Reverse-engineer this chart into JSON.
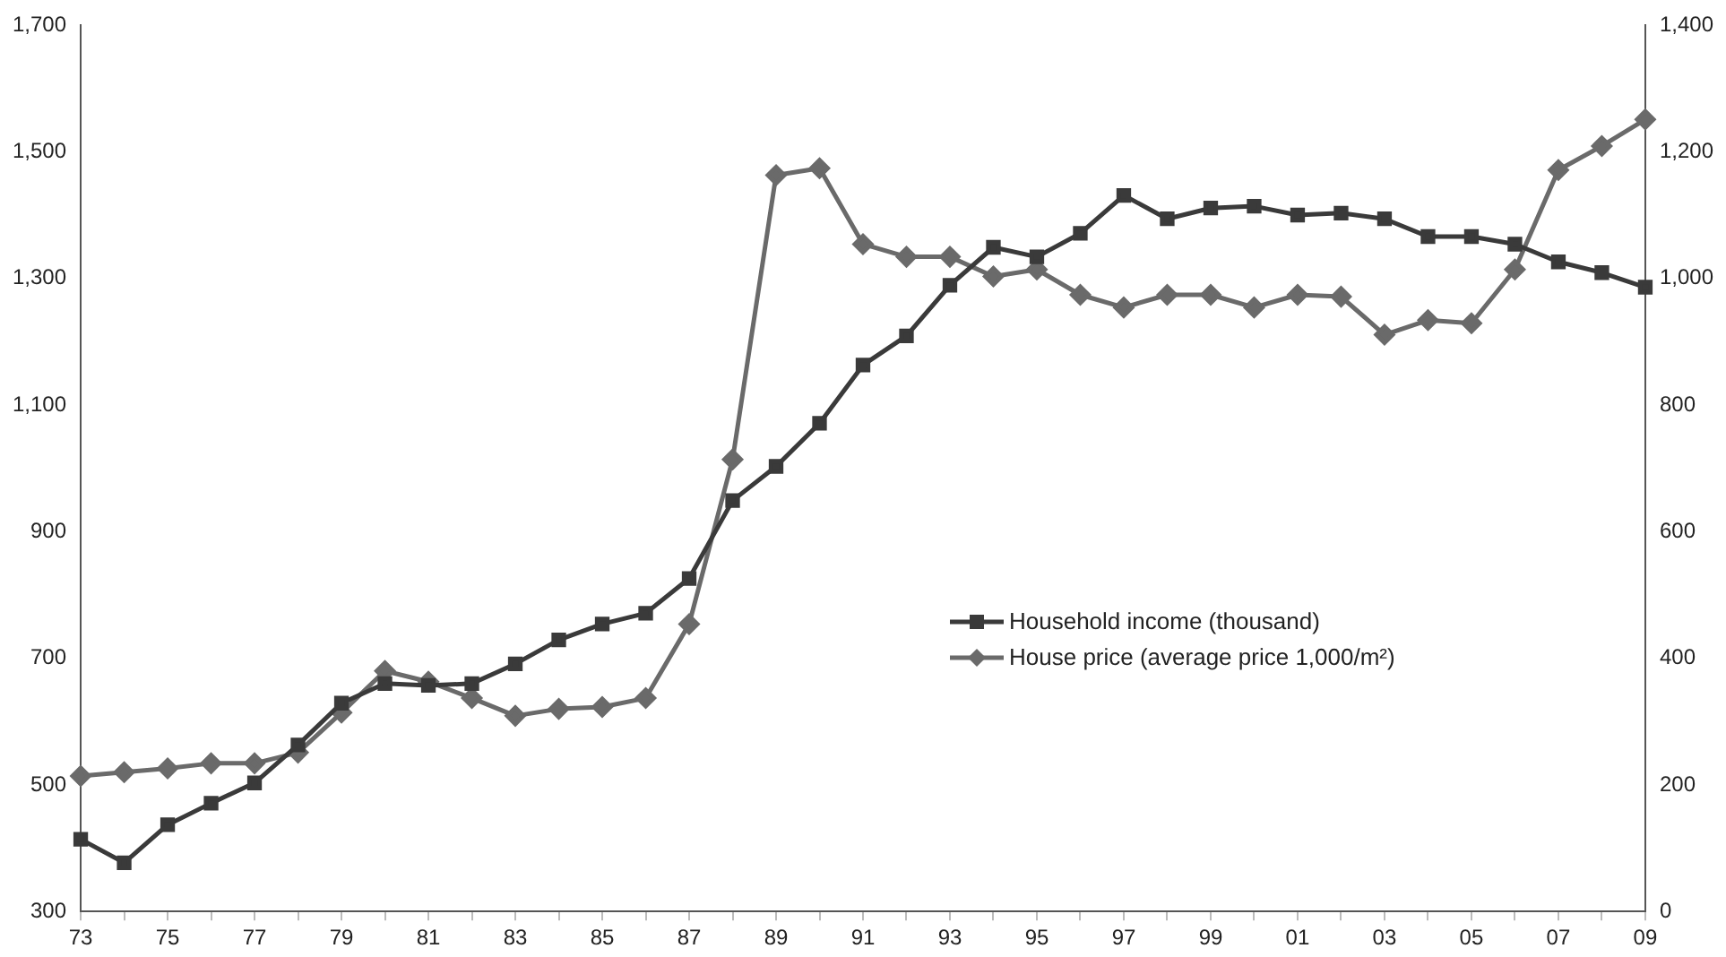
{
  "chart_data": {
    "type": "line",
    "categories": [
      "73",
      null,
      "75",
      null,
      "77",
      null,
      "79",
      null,
      "81",
      null,
      "83",
      null,
      "85",
      null,
      "87",
      null,
      "89",
      null,
      "91",
      null,
      "93",
      null,
      "95",
      null,
      "97",
      null,
      "99",
      null,
      "01",
      null,
      "03",
      null,
      "05",
      null,
      "07",
      null,
      "09"
    ],
    "series": [
      {
        "name": "Household income (thousand)",
        "color": "#3a3a3a",
        "marker": "square",
        "values": [
          414,
          377,
          437,
          471,
          503,
          563,
          629,
          660,
          657,
          660,
          691,
          729,
          754,
          771,
          826,
          949,
          1003,
          1071,
          1163,
          1209,
          1289,
          1349,
          1334,
          1371,
          1431,
          1394,
          1411,
          1414,
          1400,
          1403,
          1394,
          1366,
          1366,
          1354,
          1326,
          1309,
          1286
        ]
      },
      {
        "name": "House price (average price 1,000/m²)",
        "color": "#6a6a6a",
        "marker": "diamond",
        "axis": "y2",
        "values": [
          214,
          220,
          226,
          234,
          234,
          251,
          314,
          380,
          363,
          337,
          309,
          320,
          323,
          337,
          454,
          714,
          1163,
          1174,
          1054,
          1034,
          1034,
          1003,
          1014,
          974,
          954,
          974,
          974,
          954,
          974,
          971,
          911,
          934,
          929,
          1014,
          1171,
          1209,
          1251
        ]
      }
    ],
    "ylim": [
      300,
      1700
    ],
    "yticks": [
      {
        "value": 300,
        "label": "300"
      },
      {
        "value": 500,
        "label": "500"
      },
      {
        "value": 700,
        "label": "700"
      },
      {
        "value": 900,
        "label": "900"
      },
      {
        "value": 1100,
        "label": "1,100"
      },
      {
        "value": 1300,
        "label": "1,300"
      },
      {
        "value": 1500,
        "label": "1,500"
      },
      {
        "value": 1700,
        "label": "1,700"
      }
    ],
    "y2lim": [
      0,
      1400
    ],
    "y2ticks": [
      0,
      200,
      400,
      600,
      800,
      {
        "value": 1000,
        "label": "1,000"
      },
      {
        "value": 1200,
        "label": "1,200"
      },
      {
        "value": 1400,
        "label": "1,400"
      }
    ],
    "grid": false,
    "legend": "center right",
    "line_style": "solid"
  }
}
